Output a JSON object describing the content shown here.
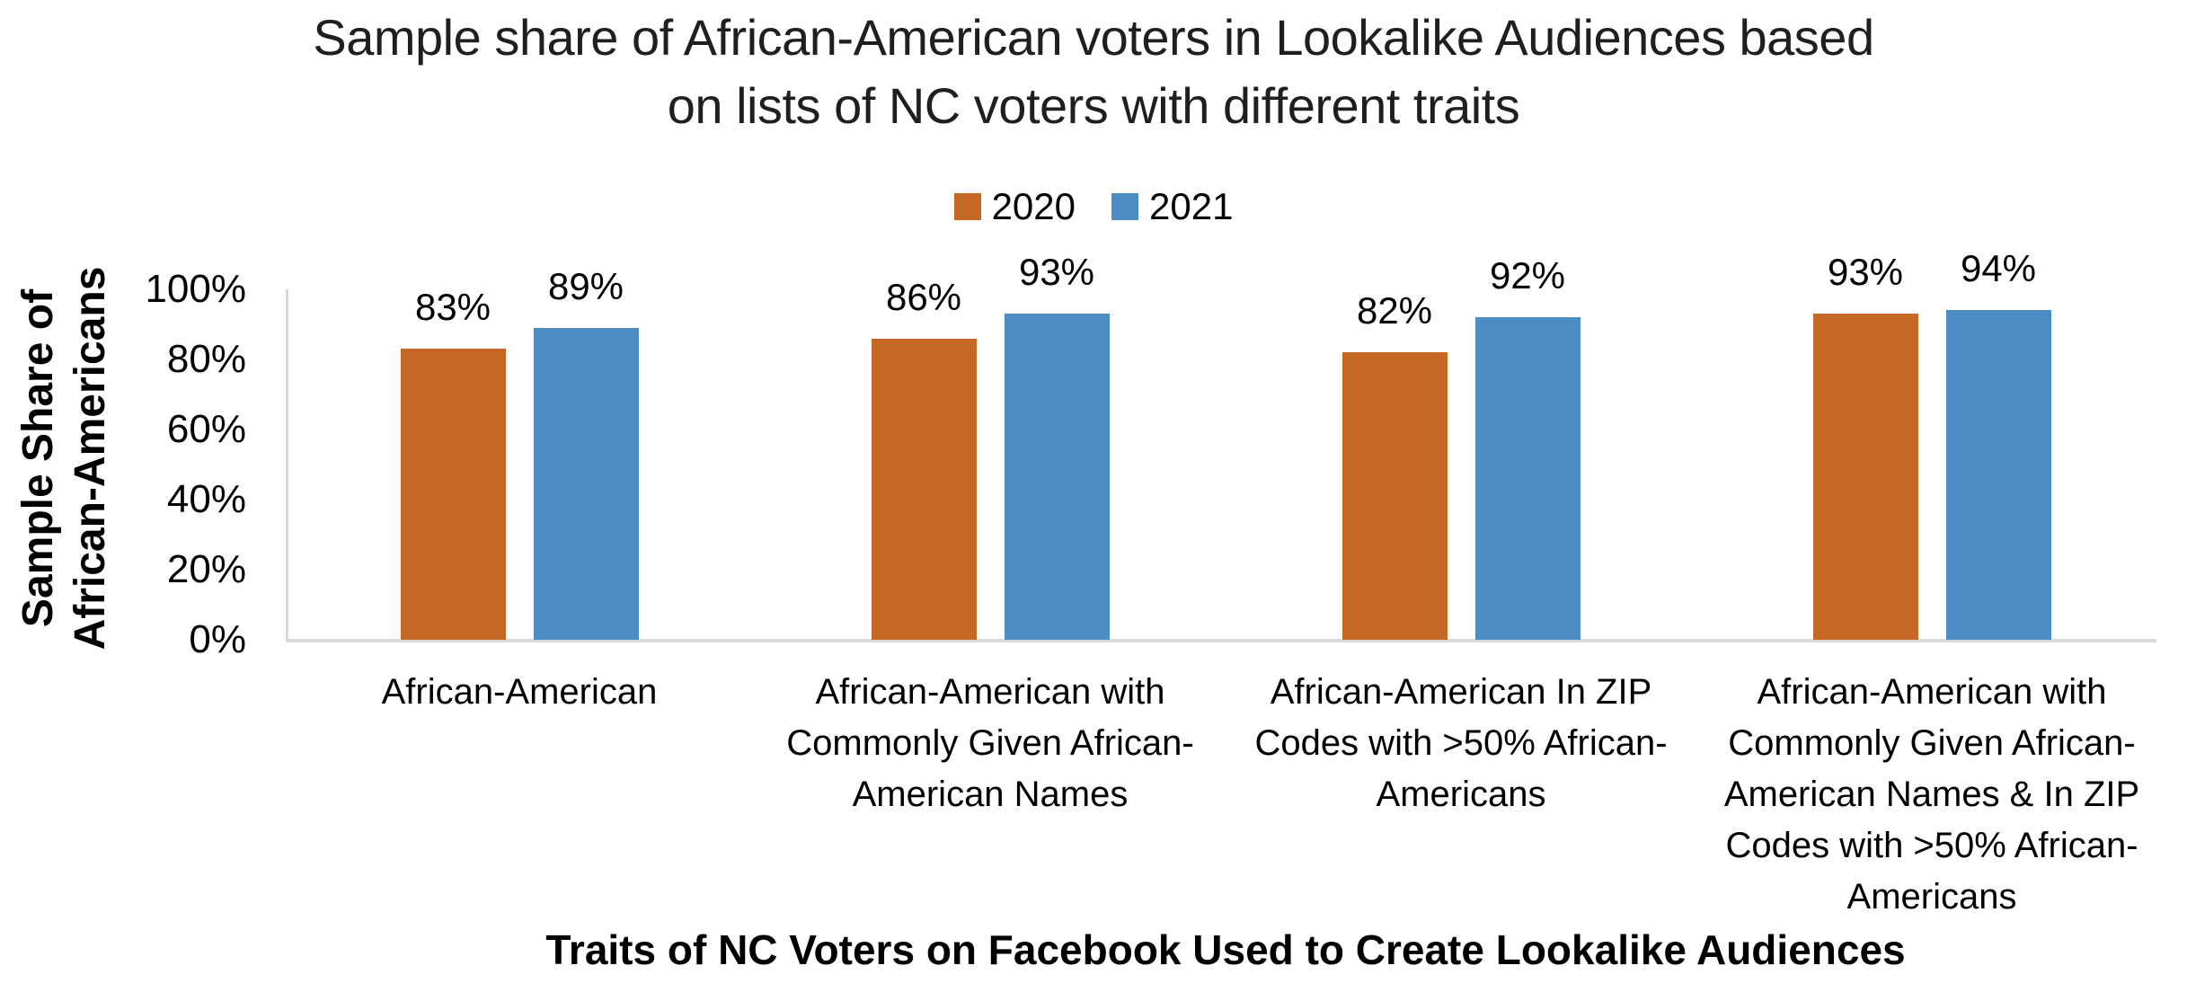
{
  "title": {
    "lines": [
      "Sample share of African-American voters in Lookalike Audiences based",
      "on lists of NC voters with different traits"
    ]
  },
  "legend": {
    "items": [
      {
        "label": "2020",
        "color": "#C56826"
      },
      {
        "label": "2021",
        "color": "#4D8DC6"
      }
    ]
  },
  "y_axis": {
    "title_lines": [
      "Sample Share of",
      "African-Americans"
    ],
    "tick_labels": [
      "100%",
      "80%",
      "60%",
      "40%",
      "20%",
      "0%"
    ]
  },
  "x_axis": {
    "title": "Traits of NC Voters on Facebook Used to Create Lookalike Audiences"
  },
  "chart_data": {
    "type": "bar",
    "title": "Sample share of African-American voters in Lookalike Audiences based on lists of NC voters with different traits",
    "categories": [
      "African-American",
      "African-American with Commonly Given African-American Names",
      "African-American In ZIP Codes with >50% African-Americans",
      "African-American with Commonly Given African-American Names & In ZIP Codes with >50% African-Americans"
    ],
    "categories_display_lines": [
      [
        "African-American"
      ],
      [
        "African-American with",
        "Commonly Given African-",
        "American Names"
      ],
      [
        "African-American In ZIP",
        "Codes with >50% African-",
        "Americans"
      ],
      [
        "African-American with",
        "Commonly Given African-",
        "American Names & In ZIP",
        "Codes with >50% African-",
        "Americans"
      ]
    ],
    "series": [
      {
        "name": "2020",
        "color": "#C56826",
        "values": [
          83,
          86,
          82,
          93
        ]
      },
      {
        "name": "2021",
        "color": "#4D8DC6",
        "values": [
          89,
          93,
          92,
          94
        ]
      }
    ],
    "value_suffix": "%",
    "xlabel": "Traits of NC Voters on Facebook Used to Create Lookalike Audiences",
    "ylabel": "Sample Share of African-Americans",
    "ylim": [
      0,
      100
    ],
    "y_ticks": [
      0,
      20,
      40,
      60,
      80,
      100
    ],
    "grid": false,
    "legend_position": "top",
    "axis_line_color": "#D9D9D9"
  }
}
